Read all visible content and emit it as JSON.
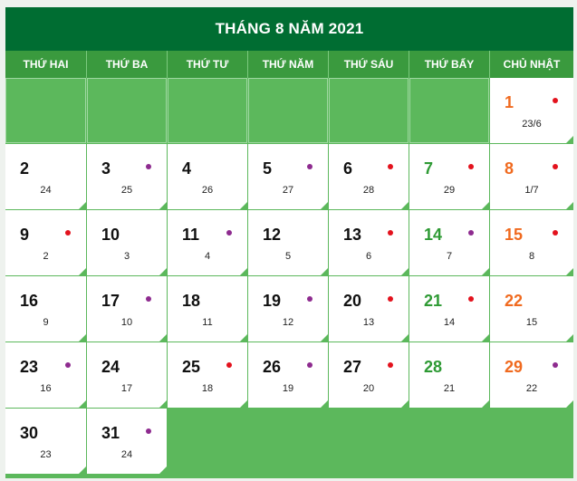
{
  "title": "THÁNG 8 NĂM 2021",
  "weekdays": [
    "THỨ HAI",
    "THỨ BA",
    "THỨ TƯ",
    "THỨ NĂM",
    "THỨ SÁU",
    "THỨ BẨY",
    "CHỦ NHẬT"
  ],
  "colors": {
    "saturday": "#2e9a34",
    "sunday": "#f06a1f",
    "dot_red": "#e3121d",
    "dot_purple": "#8e2b8f",
    "header": "#006d32",
    "weekday_bar": "#3a9a3e",
    "empty": "#5cb85c"
  },
  "leading_empty_cells": 6,
  "days": [
    {
      "solar": "1",
      "lunar": "23/6",
      "dot": "red"
    },
    {
      "solar": "2",
      "lunar": "24",
      "dot": ""
    },
    {
      "solar": "3",
      "lunar": "25",
      "dot": "purple"
    },
    {
      "solar": "4",
      "lunar": "26",
      "dot": ""
    },
    {
      "solar": "5",
      "lunar": "27",
      "dot": "purple"
    },
    {
      "solar": "6",
      "lunar": "28",
      "dot": "red"
    },
    {
      "solar": "7",
      "lunar": "29",
      "dot": "red"
    },
    {
      "solar": "8",
      "lunar": "1/7",
      "dot": "red"
    },
    {
      "solar": "9",
      "lunar": "2",
      "dot": "red"
    },
    {
      "solar": "10",
      "lunar": "3",
      "dot": ""
    },
    {
      "solar": "11",
      "lunar": "4",
      "dot": "purple"
    },
    {
      "solar": "12",
      "lunar": "5",
      "dot": ""
    },
    {
      "solar": "13",
      "lunar": "6",
      "dot": "red"
    },
    {
      "solar": "14",
      "lunar": "7",
      "dot": "purple"
    },
    {
      "solar": "15",
      "lunar": "8",
      "dot": "red"
    },
    {
      "solar": "16",
      "lunar": "9",
      "dot": ""
    },
    {
      "solar": "17",
      "lunar": "10",
      "dot": "purple"
    },
    {
      "solar": "18",
      "lunar": "11",
      "dot": ""
    },
    {
      "solar": "19",
      "lunar": "12",
      "dot": "purple"
    },
    {
      "solar": "20",
      "lunar": "13",
      "dot": "red"
    },
    {
      "solar": "21",
      "lunar": "14",
      "dot": "red"
    },
    {
      "solar": "22",
      "lunar": "15",
      "dot": ""
    },
    {
      "solar": "23",
      "lunar": "16",
      "dot": "purple"
    },
    {
      "solar": "24",
      "lunar": "17",
      "dot": ""
    },
    {
      "solar": "25",
      "lunar": "18",
      "dot": "red"
    },
    {
      "solar": "26",
      "lunar": "19",
      "dot": "purple"
    },
    {
      "solar": "27",
      "lunar": "20",
      "dot": "red"
    },
    {
      "solar": "28",
      "lunar": "21",
      "dot": ""
    },
    {
      "solar": "29",
      "lunar": "22",
      "dot": "purple"
    },
    {
      "solar": "30",
      "lunar": "23",
      "dot": ""
    },
    {
      "solar": "31",
      "lunar": "24",
      "dot": "purple"
    }
  ]
}
